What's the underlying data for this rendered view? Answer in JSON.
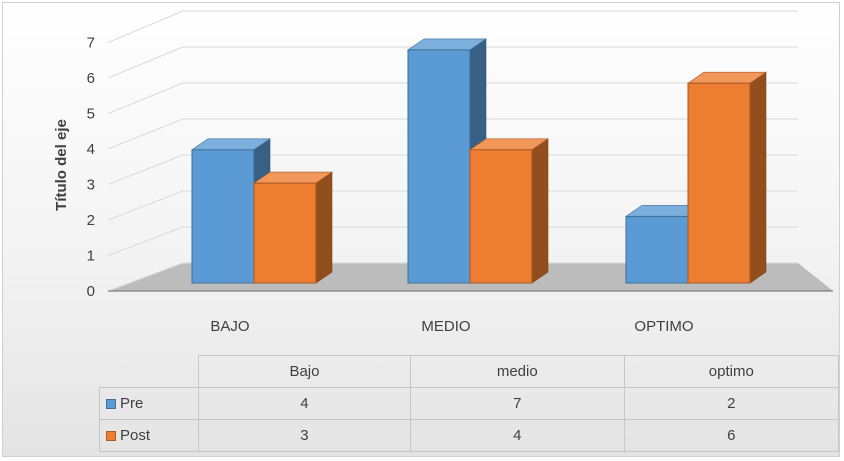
{
  "chart_data": {
    "type": "bar",
    "ylabel": "Título del eje",
    "ylim": [
      0,
      7
    ],
    "yticks": [
      "0",
      "1",
      "2",
      "3",
      "4",
      "5",
      "6",
      "7"
    ],
    "categories": [
      "BAJO",
      "MEDIO",
      "OPTIMO"
    ],
    "series": [
      {
        "name": "Pre",
        "values": [
          4,
          7,
          2
        ],
        "color": "#5b9bd5"
      },
      {
        "name": "Post",
        "values": [
          3,
          4,
          6
        ],
        "color": "#ed7d31"
      }
    ],
    "table": {
      "header": [
        "Bajo",
        "medio",
        "optimo"
      ],
      "rows": [
        {
          "name": "Pre",
          "values": [
            "4",
            "7",
            "2"
          ]
        },
        {
          "name": "Post",
          "values": [
            "3",
            "4",
            "6"
          ]
        }
      ]
    },
    "grid": true,
    "style": "3d-clustered-column"
  }
}
